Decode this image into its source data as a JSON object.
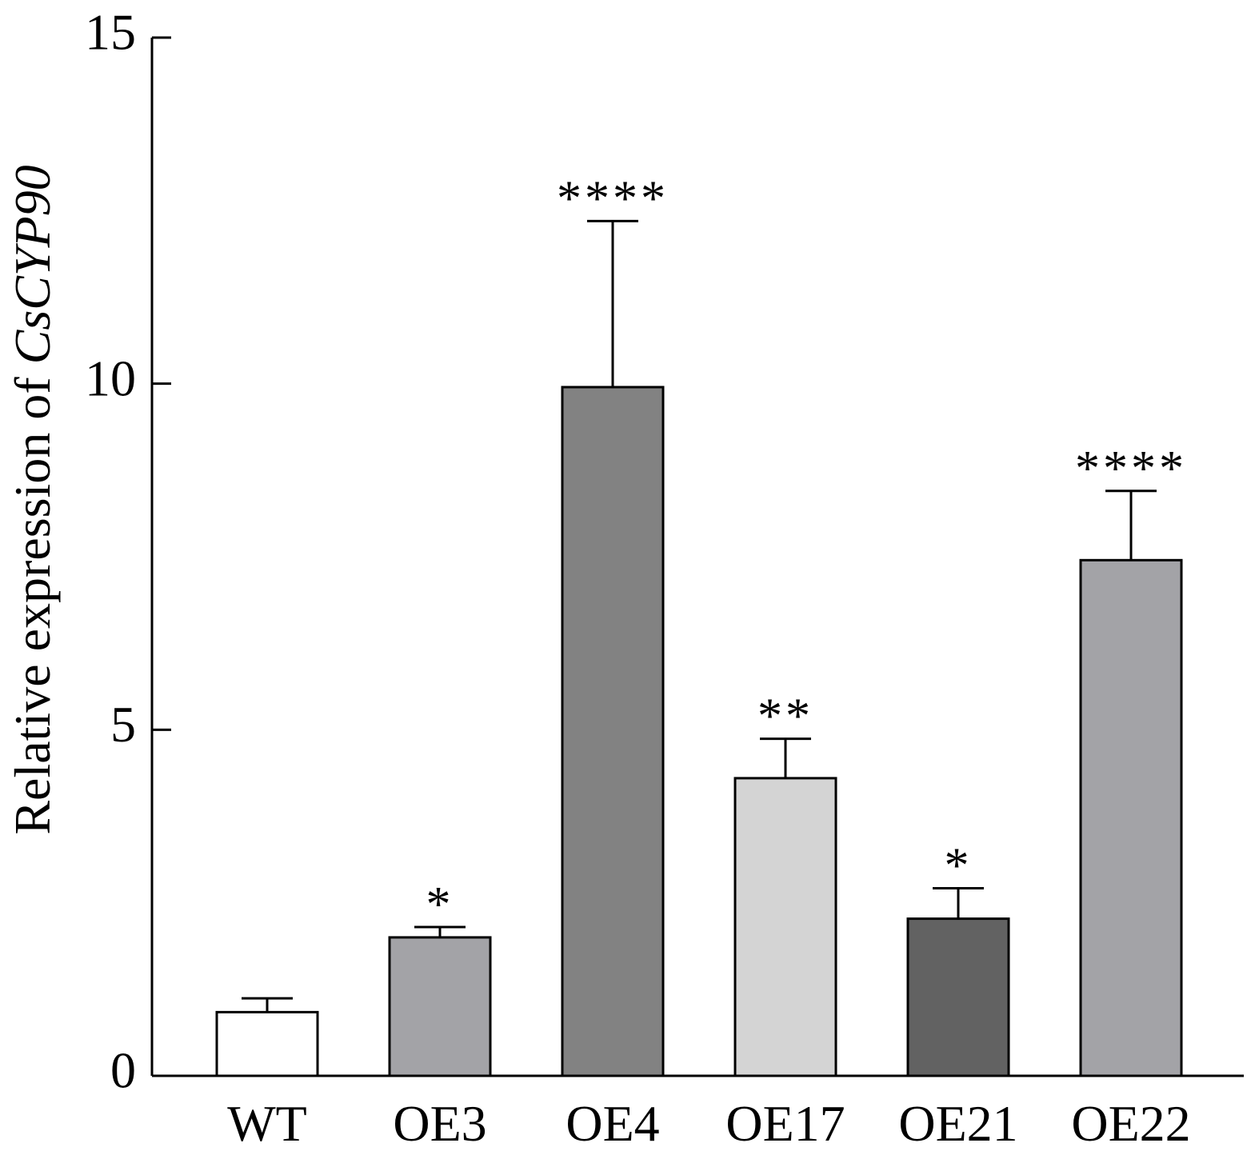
{
  "chart_data": {
    "type": "bar",
    "title": "",
    "xlabel": "",
    "ylabel": {
      "prefix": "Relative expression of ",
      "gene": "CsCYP90"
    },
    "ylim": [
      0,
      15
    ],
    "yticks": [
      0,
      5,
      10,
      15
    ],
    "ytick_labels": [
      "0",
      "5",
      "10",
      "15"
    ],
    "categories": [
      "WT",
      "OE3",
      "OE4",
      "OE17",
      "OE21",
      "OE22"
    ],
    "values": [
      0.92,
      2.0,
      9.95,
      4.3,
      2.27,
      7.45
    ],
    "errors": [
      0.2,
      0.15,
      2.4,
      0.57,
      0.44,
      1.0
    ],
    "significance": [
      "",
      "*",
      "****",
      "**",
      "*",
      "****"
    ],
    "bar_colors": [
      "#ffffff",
      "#a3a3a7",
      "#828282",
      "#d4d4d4",
      "#626262",
      "#a3a3a7"
    ],
    "grid": false,
    "legend": "none"
  }
}
